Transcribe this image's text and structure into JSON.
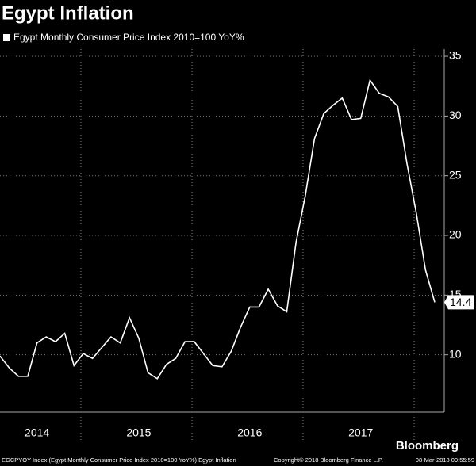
{
  "chart_data": {
    "type": "line",
    "title": "Egypt Inflation",
    "categories": [
      null,
      null,
      null,
      null,
      "2014",
      null,
      null,
      null,
      null,
      null,
      null,
      null,
      null,
      null,
      null,
      "2015",
      null,
      null,
      null,
      null,
      null,
      null,
      null,
      null,
      null,
      null,
      null,
      "2016",
      null,
      null,
      null,
      null,
      null,
      null,
      null,
      null,
      null,
      null,
      null,
      "2017",
      null,
      null,
      null,
      null,
      null,
      null,
      null,
      null
    ],
    "series": [
      {
        "name": "Egypt Monthly Consumer Price Index 2010=100 YoY%",
        "color": "#ffffff",
        "values": [
          9.9,
          8.9,
          8.2,
          8.2,
          11.0,
          11.5,
          11.1,
          11.8,
          9.1,
          10.1,
          9.7,
          10.6,
          11.5,
          11.0,
          13.1,
          11.4,
          8.5,
          8.0,
          9.2,
          9.7,
          11.1,
          11.1,
          10.1,
          9.1,
          9.0,
          10.3,
          12.3,
          14.0,
          14.0,
          15.5,
          14.1,
          13.6,
          19.4,
          23.3,
          28.1,
          30.2,
          30.9,
          31.5,
          29.7,
          29.8,
          33.0,
          31.9,
          31.6,
          30.8,
          26.0,
          21.9,
          17.1,
          14.4
        ]
      }
    ],
    "ylim": [
      5.2,
      35.6
    ],
    "yticks": [
      10,
      15,
      20,
      25,
      30,
      35
    ],
    "grid": true,
    "brand": "Bloomberg",
    "source": "EGCPYOY Index (Egypt Monthly Consumer Price Index 2010=100 YoY%) Egypt Inflation",
    "copyright": "Copyright© 2018 Bloomberg Finance L.P.",
    "timestamp": "08-Mar-2018 09:55:59"
  }
}
